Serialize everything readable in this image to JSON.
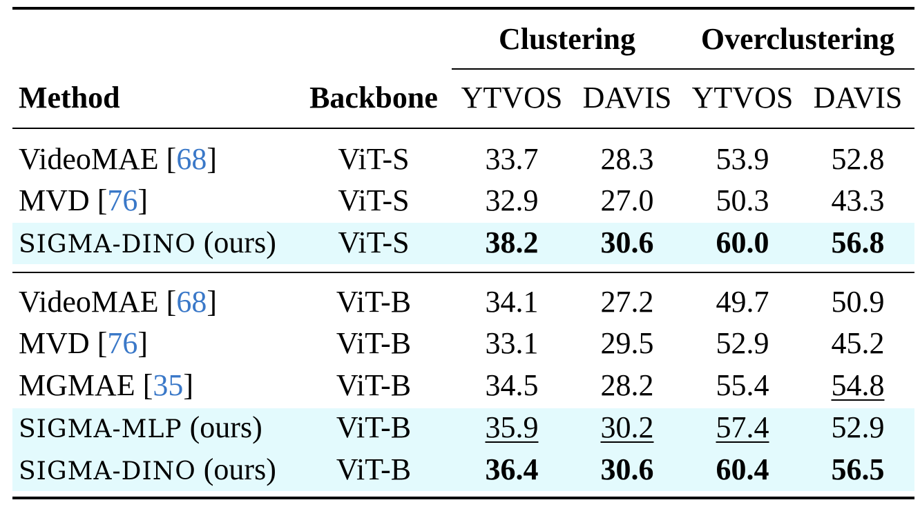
{
  "headers": {
    "method": "Method",
    "backbone": "Backbone",
    "group_clustering": "Clustering",
    "group_overclustering": "Overclustering",
    "sub": [
      "YTVOS",
      "DAVIS",
      "YTVOS",
      "DAVIS"
    ]
  },
  "rows": [
    {
      "name": "VideoMAE",
      "cite": "68",
      "suffix": "",
      "backbone": "ViT-S",
      "values": [
        "33.7",
        "28.3",
        "53.9",
        "52.8"
      ],
      "bold": [
        false,
        false,
        false,
        false
      ],
      "underline": [
        false,
        false,
        false,
        false
      ],
      "highlight": false
    },
    {
      "name": "MVD",
      "cite": "76",
      "suffix": "",
      "backbone": "ViT-S",
      "values": [
        "32.9",
        "27.0",
        "50.3",
        "43.3"
      ],
      "bold": [
        false,
        false,
        false,
        false
      ],
      "underline": [
        false,
        false,
        false,
        false
      ],
      "highlight": false
    },
    {
      "name": "SIGMA-DINO",
      "cite": "",
      "suffix": "(ours)",
      "backbone": "ViT-S",
      "values": [
        "38.2",
        "30.6",
        "60.0",
        "56.8"
      ],
      "bold": [
        true,
        true,
        true,
        true
      ],
      "underline": [
        false,
        false,
        false,
        false
      ],
      "highlight": true
    },
    {
      "name": "VideoMAE",
      "cite": "68",
      "suffix": "",
      "backbone": "ViT-B",
      "values": [
        "34.1",
        "27.2",
        "49.7",
        "50.9"
      ],
      "bold": [
        false,
        false,
        false,
        false
      ],
      "underline": [
        false,
        false,
        false,
        false
      ],
      "highlight": false
    },
    {
      "name": "MVD",
      "cite": "76",
      "suffix": "",
      "backbone": "ViT-B",
      "values": [
        "33.1",
        "29.5",
        "52.9",
        "45.2"
      ],
      "bold": [
        false,
        false,
        false,
        false
      ],
      "underline": [
        false,
        false,
        false,
        false
      ],
      "highlight": false
    },
    {
      "name": "MGMAE",
      "cite": "35",
      "suffix": "",
      "backbone": "ViT-B",
      "values": [
        "34.5",
        "28.2",
        "55.4",
        "54.8"
      ],
      "bold": [
        false,
        false,
        false,
        false
      ],
      "underline": [
        false,
        false,
        false,
        true
      ],
      "highlight": false
    },
    {
      "name": "SIGMA-MLP",
      "cite": "",
      "suffix": "(ours)",
      "backbone": "ViT-B",
      "values": [
        "35.9",
        "30.2",
        "57.4",
        "52.9"
      ],
      "bold": [
        false,
        false,
        false,
        false
      ],
      "underline": [
        true,
        true,
        true,
        false
      ],
      "highlight": true
    },
    {
      "name": "SIGMA-DINO",
      "cite": "",
      "suffix": "(ours)",
      "backbone": "ViT-B",
      "values": [
        "36.4",
        "30.6",
        "60.4",
        "56.5"
      ],
      "bold": [
        true,
        true,
        true,
        true
      ],
      "underline": [
        false,
        false,
        false,
        false
      ],
      "highlight": true
    }
  ],
  "colors": {
    "highlight": "#e3fafd",
    "citation": "#3a78c8"
  }
}
